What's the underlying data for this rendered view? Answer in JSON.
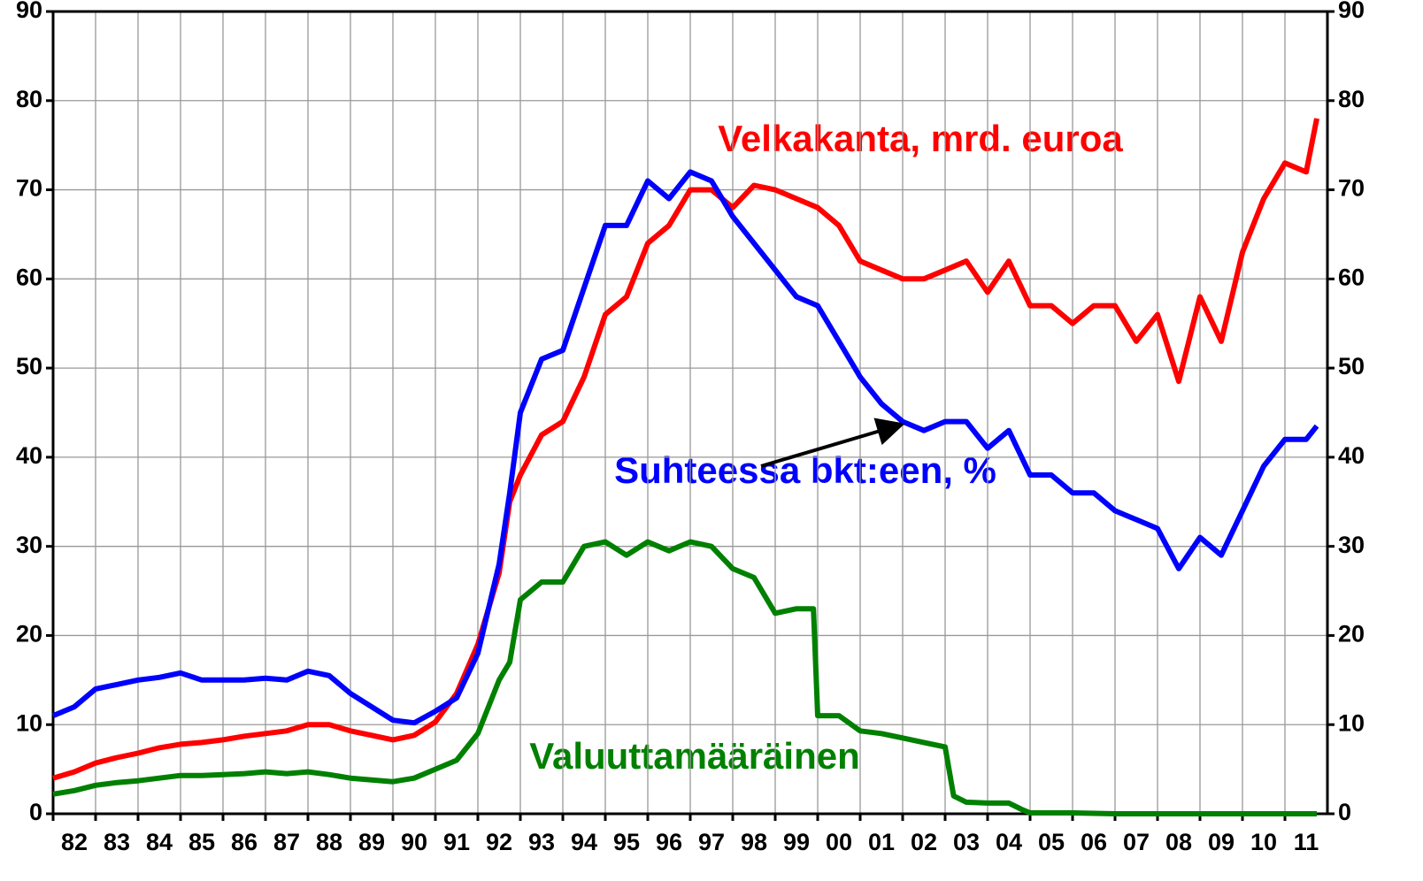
{
  "chart_data": {
    "type": "line",
    "xlim": [
      1982,
      2012
    ],
    "xticks": [
      {
        "value": 1982.5,
        "label": "82"
      },
      {
        "value": 1983.5,
        "label": "83"
      },
      {
        "value": 1984.5,
        "label": "84"
      },
      {
        "value": 1985.5,
        "label": "85"
      },
      {
        "value": 1986.5,
        "label": "86"
      },
      {
        "value": 1987.5,
        "label": "87"
      },
      {
        "value": 1988.5,
        "label": "88"
      },
      {
        "value": 1989.5,
        "label": "89"
      },
      {
        "value": 1990.5,
        "label": "90"
      },
      {
        "value": 1991.5,
        "label": "91"
      },
      {
        "value": 1992.5,
        "label": "92"
      },
      {
        "value": 1993.5,
        "label": "93"
      },
      {
        "value": 1994.5,
        "label": "94"
      },
      {
        "value": 1995.5,
        "label": "95"
      },
      {
        "value": 1996.5,
        "label": "96"
      },
      {
        "value": 1997.5,
        "label": "97"
      },
      {
        "value": 1998.5,
        "label": "98"
      },
      {
        "value": 1999.5,
        "label": "99"
      },
      {
        "value": 2000.5,
        "label": "00"
      },
      {
        "value": 2001.5,
        "label": "01"
      },
      {
        "value": 2002.5,
        "label": "02"
      },
      {
        "value": 2003.5,
        "label": "03"
      },
      {
        "value": 2004.5,
        "label": "04"
      },
      {
        "value": 2005.5,
        "label": "05"
      },
      {
        "value": 2006.5,
        "label": "06"
      },
      {
        "value": 2007.5,
        "label": "07"
      },
      {
        "value": 2008.5,
        "label": "08"
      },
      {
        "value": 2009.5,
        "label": "09"
      },
      {
        "value": 2010.5,
        "label": "10"
      },
      {
        "value": 2011.5,
        "label": "11"
      }
    ],
    "ylim": [
      0,
      90
    ],
    "yticks": [
      0,
      10,
      20,
      30,
      40,
      50,
      60,
      70,
      80,
      90
    ],
    "grid": true,
    "series": [
      {
        "name": "Velkakanta, mrd. euroa",
        "color": "#ff0000",
        "x": [
          1982,
          1982.5,
          1983,
          1983.5,
          1984,
          1984.5,
          1985,
          1985.5,
          1986,
          1986.5,
          1987,
          1987.5,
          1988,
          1988.5,
          1989,
          1989.5,
          1990,
          1990.5,
          1991,
          1991.5,
          1992,
          1992.5,
          1992.75,
          1993,
          1993.5,
          1994,
          1994.5,
          1995,
          1995.5,
          1996,
          1996.5,
          1997,
          1997.5,
          1998,
          1998.5,
          1999,
          1999.5,
          2000,
          2000.5,
          2001,
          2001.5,
          2002,
          2002.5,
          2003,
          2003.5,
          2004,
          2004.5,
          2005,
          2005.5,
          2006,
          2006.5,
          2007,
          2007.5,
          2008,
          2008.5,
          2009,
          2009.5,
          2010,
          2010.5,
          2011,
          2011.5,
          2011.75
        ],
        "values": [
          4,
          4.7,
          5.7,
          6.3,
          6.8,
          7.4,
          7.8,
          8,
          8.3,
          8.7,
          9,
          9.3,
          10,
          10,
          9.3,
          8.8,
          8.3,
          8.8,
          10.3,
          13.5,
          19,
          27,
          35,
          38,
          42.5,
          44,
          49,
          56,
          58,
          64,
          66,
          70,
          70,
          68,
          70.5,
          70,
          69,
          68,
          66,
          62,
          61,
          60,
          60,
          61,
          62,
          58.5,
          62,
          57,
          57,
          55,
          57,
          57,
          53,
          56,
          48.5,
          58,
          53,
          63,
          69,
          73,
          72,
          78
        ]
      },
      {
        "name": "Suhteessa bkt:een, %",
        "color": "#0000ff",
        "x": [
          1982,
          1982.5,
          1983,
          1983.5,
          1984,
          1984.5,
          1985,
          1985.5,
          1986,
          1986.5,
          1987,
          1987.5,
          1988,
          1988.5,
          1989,
          1989.5,
          1990,
          1990.5,
          1991,
          1991.5,
          1992,
          1992.5,
          1992.75,
          1993,
          1993.5,
          1994,
          1994.5,
          1995,
          1995.5,
          1996,
          1996.5,
          1997,
          1997.5,
          1998,
          1998.5,
          1999,
          1999.5,
          2000,
          2000.5,
          2001,
          2001.5,
          2002,
          2002.5,
          2003,
          2003.5,
          2004,
          2004.5,
          2005,
          2005.5,
          2006,
          2006.5,
          2007,
          2007.5,
          2008,
          2008.5,
          2009,
          2009.5,
          2010,
          2010.5,
          2011,
          2011.5,
          2011.75
        ],
        "values": [
          11,
          12,
          14,
          14.5,
          15,
          15.3,
          15.8,
          15,
          15,
          15,
          15.2,
          15,
          16,
          15.5,
          13.5,
          12,
          10.5,
          10.2,
          11.5,
          13,
          18,
          28,
          36,
          45,
          51,
          52,
          59,
          66,
          66,
          71,
          69,
          72,
          71,
          67,
          64,
          61,
          58,
          57,
          53,
          49,
          46,
          44,
          43,
          44,
          44,
          41,
          43,
          38,
          38,
          36,
          36,
          34,
          33,
          32,
          27.5,
          31,
          29,
          34,
          39,
          42,
          42,
          43.5
        ]
      },
      {
        "name": "Valuuttamääräinen",
        "color": "#008000",
        "x": [
          1982,
          1982.5,
          1983,
          1983.5,
          1984,
          1984.5,
          1985,
          1985.5,
          1986,
          1986.5,
          1987,
          1987.5,
          1988,
          1988.5,
          1989,
          1989.5,
          1990,
          1990.5,
          1991,
          1991.5,
          1992,
          1992.5,
          1992.75,
          1993,
          1993.5,
          1994,
          1994.5,
          1995,
          1995.5,
          1996,
          1996.5,
          1997,
          1997.5,
          1998,
          1998.5,
          1999,
          1999.5,
          1999.9,
          2000,
          2000.5,
          2001,
          2001.5,
          2002,
          2002.5,
          2003,
          2003.2,
          2003.5,
          2004,
          2004.5,
          2004.8,
          2005,
          2006,
          2007,
          2008,
          2009,
          2010,
          2011,
          2011.75
        ],
        "values": [
          2.2,
          2.6,
          3.2,
          3.5,
          3.7,
          4,
          4.3,
          4.3,
          4.4,
          4.5,
          4.7,
          4.5,
          4.7,
          4.4,
          4,
          3.8,
          3.6,
          4,
          5,
          6,
          9,
          15,
          17,
          24,
          26,
          26,
          30,
          30.5,
          29,
          30.5,
          29.5,
          30.5,
          30,
          27.5,
          26.5,
          22.5,
          23,
          23,
          11,
          11,
          9.3,
          9,
          8.5,
          8,
          7.5,
          2,
          1.3,
          1.2,
          1.2,
          0.5,
          0.1,
          0.1,
          0,
          0,
          0,
          0,
          0,
          0
        ]
      }
    ]
  }
}
